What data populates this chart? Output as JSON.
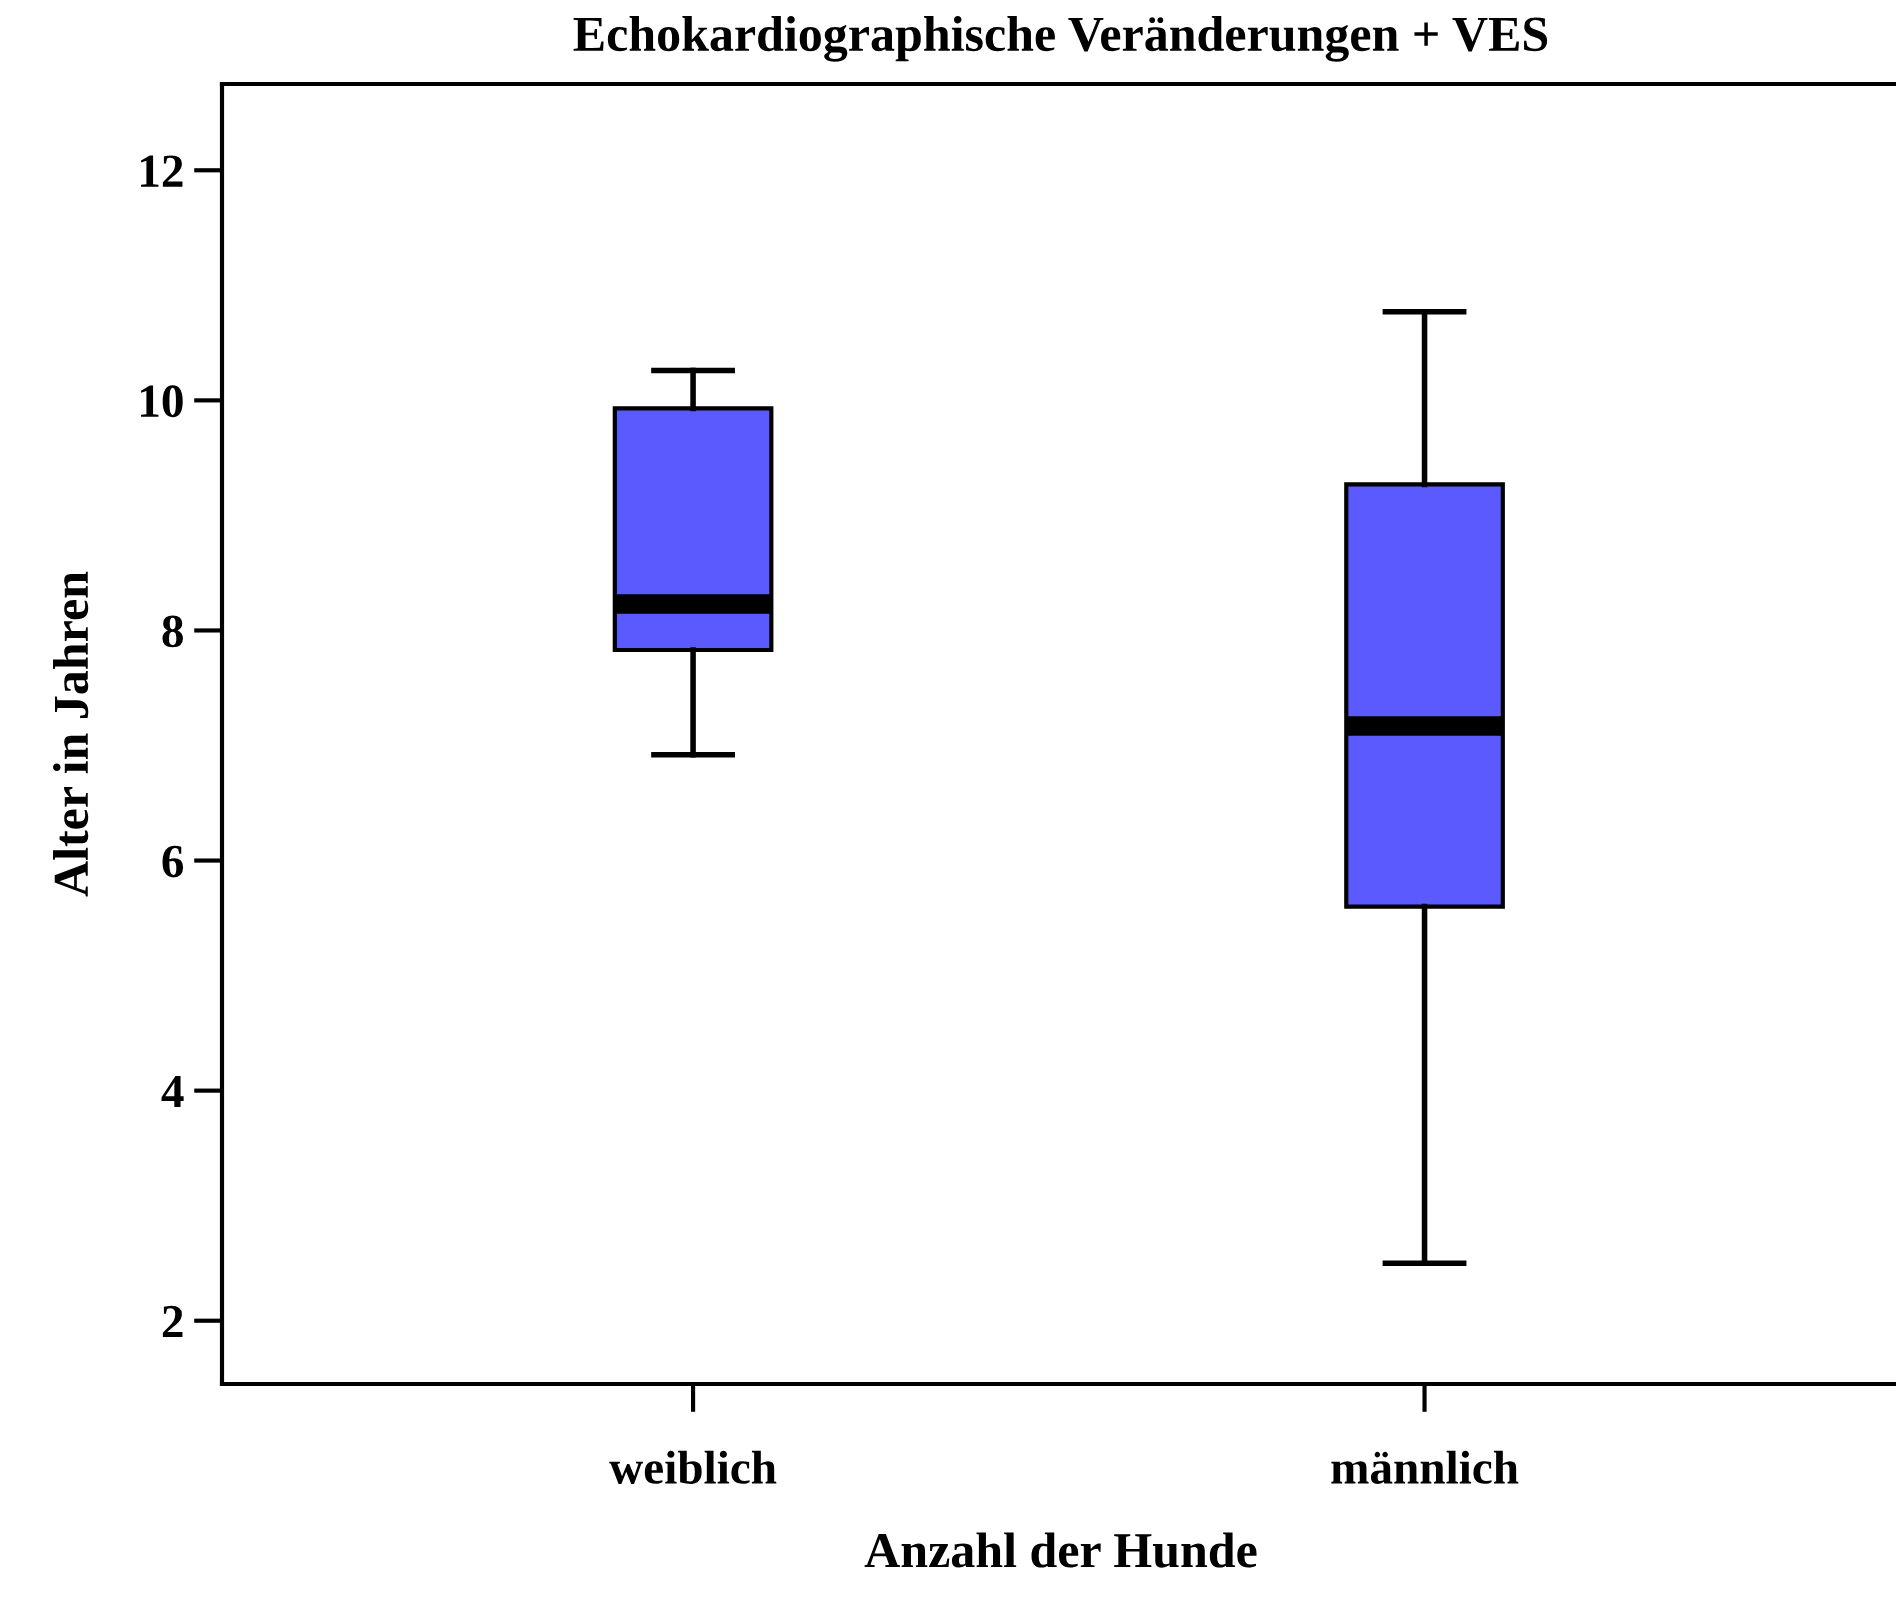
{
  "chart_data": {
    "type": "box",
    "title": "Echokardiographische Veränderungen + VES",
    "xlabel": "Anzahl der Hunde",
    "ylabel": "Alter in Jahren",
    "categories": [
      "weiblich",
      "männlich"
    ],
    "boxes": [
      {
        "low": 6.92,
        "q1": 7.83,
        "median": 8.23,
        "q3": 9.93,
        "high": 10.26
      },
      {
        "low": 2.5,
        "q1": 5.6,
        "median": 7.17,
        "q3": 9.27,
        "high": 10.77
      }
    ],
    "color": "#5a5aff",
    "ylim": [
      1.45,
      12.75
    ],
    "yticks": [
      2,
      4,
      6,
      8,
      10,
      12
    ],
    "grid": false,
    "legend": false
  }
}
